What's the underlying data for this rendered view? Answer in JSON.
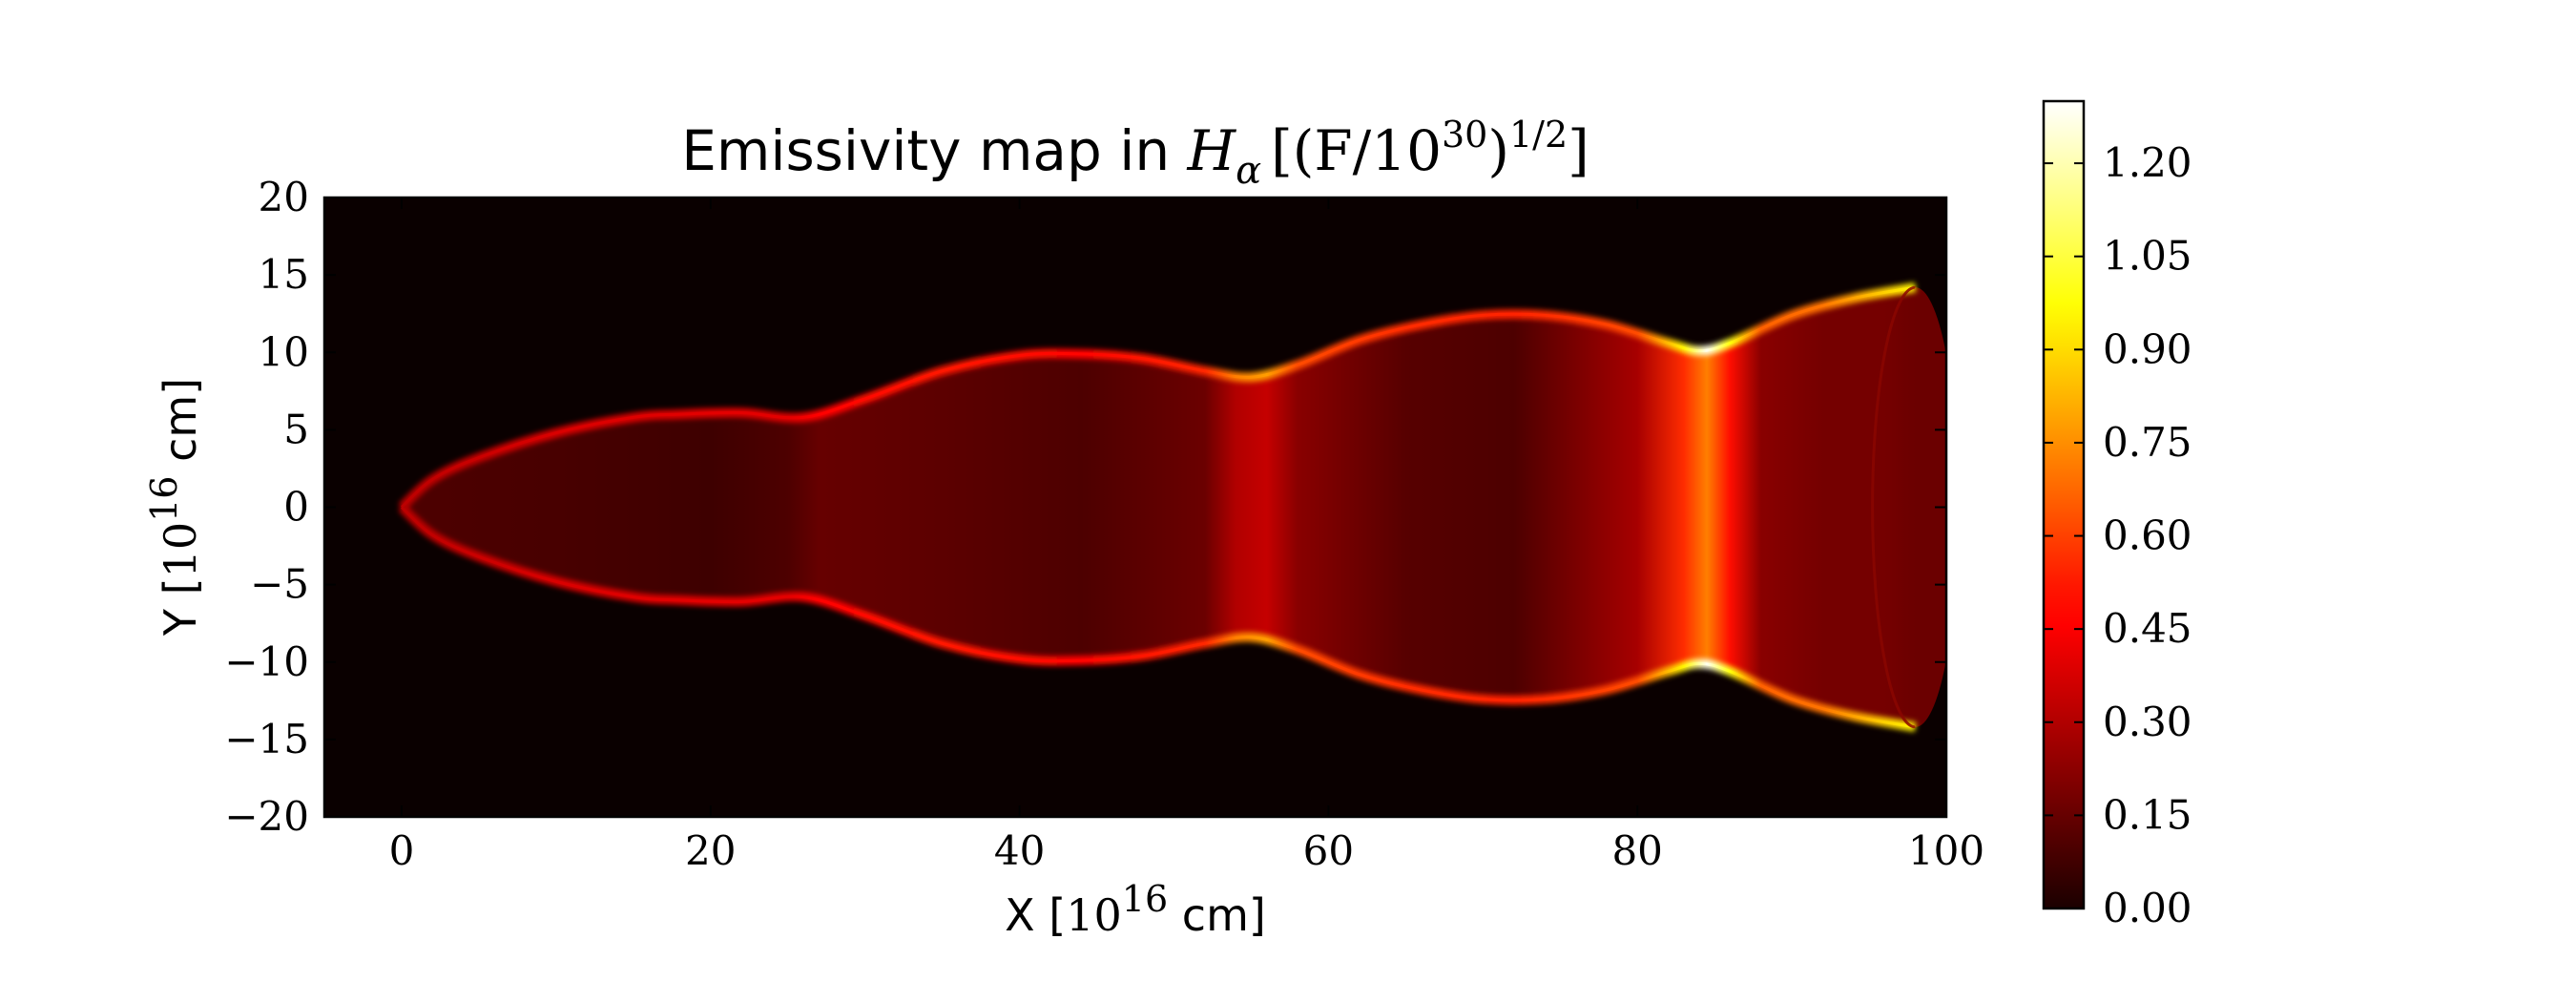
{
  "chart_data": {
    "type": "heatmap",
    "title": {
      "text": "Emissivity map in ",
      "math_symbol": "H",
      "math_subscript": "α",
      "math_expression": "[(F/10",
      "math_exponent": "30",
      "math_close": ")",
      "math_outer_exponent": "1/2",
      "math_end": "]"
    },
    "xlabel": {
      "prefix": "X [",
      "base": "10",
      "exponent": "16",
      "suffix": " cm]"
    },
    "ylabel": {
      "prefix": "Y [",
      "base": "10",
      "exponent": "16",
      "suffix": " cm]"
    },
    "xlim": [
      -5,
      100
    ],
    "ylim": [
      -20,
      20
    ],
    "xticks": [
      0,
      20,
      40,
      60,
      80,
      100
    ],
    "xtick_labels": [
      "0",
      "20",
      "40",
      "60",
      "80",
      "100"
    ],
    "yticks": [
      20,
      15,
      10,
      5,
      0,
      -5,
      -10,
      -15,
      -20
    ],
    "ytick_labels": [
      "20",
      "15",
      "10",
      "5",
      "0",
      "−5",
      "−10",
      "−15",
      "−20"
    ],
    "colorbar": {
      "range": [
        0,
        1.3
      ],
      "ticks": [
        0.0,
        0.15,
        0.3,
        0.45,
        0.6,
        0.75,
        0.9,
        1.05,
        1.2
      ],
      "tick_labels": [
        "0.00",
        "0.15",
        "0.30",
        "0.45",
        "0.60",
        "0.75",
        "0.90",
        "1.05",
        "1.20"
      ],
      "colormap": "hot"
    },
    "jet_profile": {
      "x": [
        0,
        2,
        5,
        10,
        15,
        18,
        22,
        26,
        30,
        35,
        40,
        44,
        48,
        52,
        55,
        58,
        62,
        66,
        70,
        74,
        78,
        82,
        84,
        86,
        90,
        94,
        98
      ],
      "half_width": [
        0,
        1.8,
        3.2,
        4.8,
        5.8,
        6.0,
        6.1,
        5.8,
        7.0,
        8.8,
        9.8,
        9.9,
        9.6,
        8.8,
        8.4,
        9.2,
        10.8,
        11.8,
        12.4,
        12.4,
        11.8,
        10.6,
        10.1,
        10.6,
        12.4,
        13.5,
        14.2
      ]
    },
    "emissivity_profile": {
      "x": [
        0,
        10,
        20,
        25,
        27,
        35,
        44,
        52,
        54,
        56,
        58,
        65,
        72,
        80,
        83,
        84.5,
        86,
        88,
        92,
        96,
        98
      ],
      "edge": [
        0.32,
        0.38,
        0.4,
        0.4,
        0.46,
        0.52,
        0.48,
        0.55,
        0.72,
        0.78,
        0.62,
        0.56,
        0.54,
        0.62,
        0.95,
        1.28,
        0.98,
        0.66,
        0.7,
        0.88,
        0.95
      ],
      "core": [
        0.1,
        0.09,
        0.07,
        0.1,
        0.15,
        0.13,
        0.1,
        0.16,
        0.3,
        0.34,
        0.22,
        0.12,
        0.1,
        0.28,
        0.56,
        0.72,
        0.5,
        0.22,
        0.18,
        0.18,
        0.16
      ]
    },
    "background_color": "#0a0000",
    "legend": "none",
    "grid": false
  }
}
